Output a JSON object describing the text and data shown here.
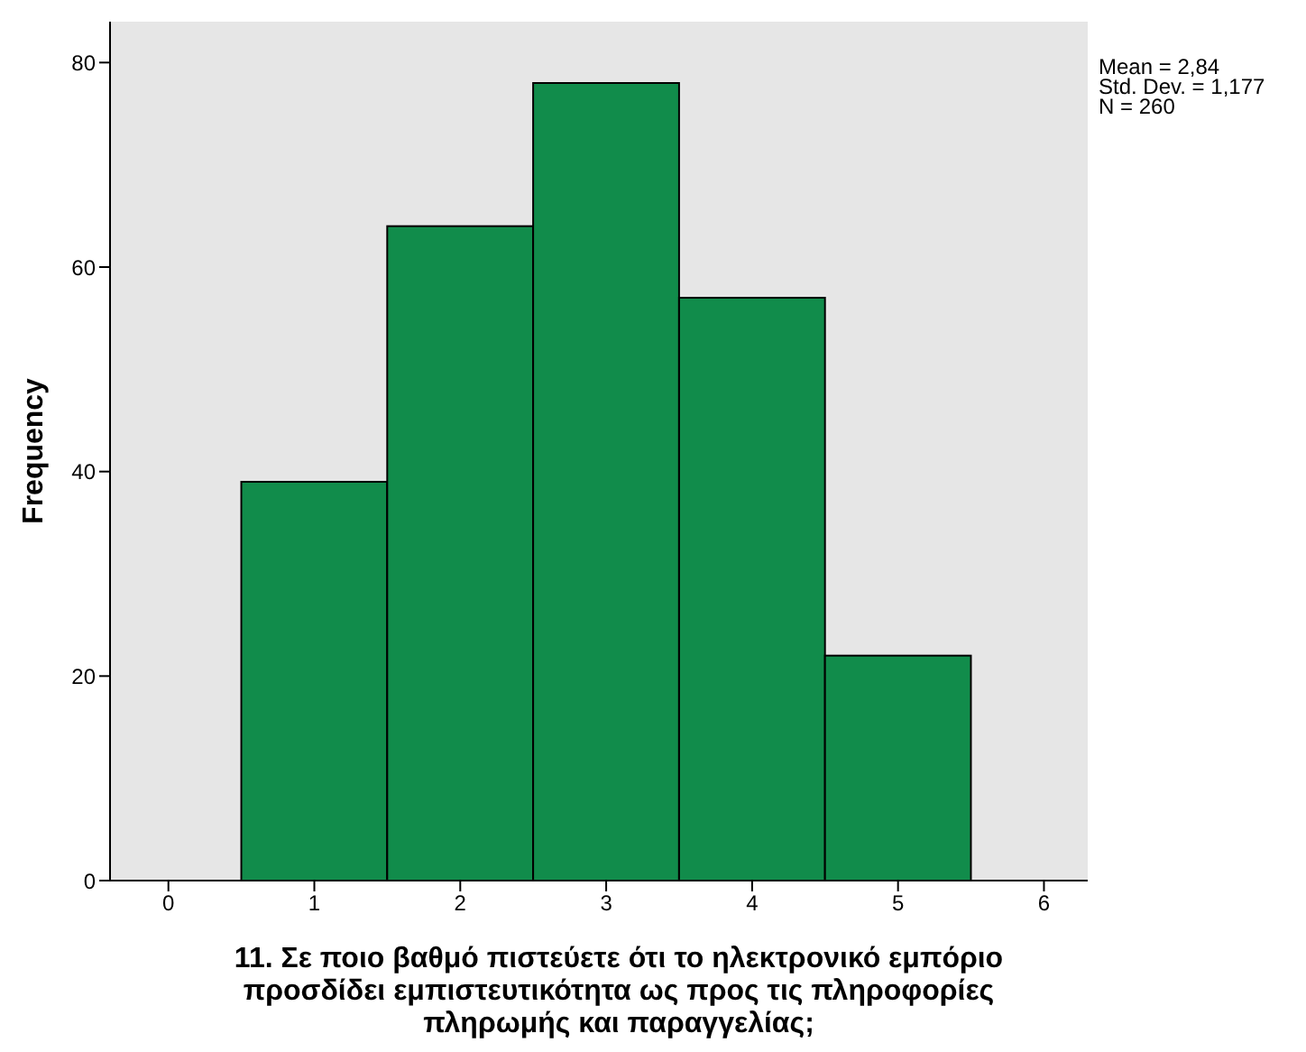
{
  "chart_data": {
    "type": "histogram",
    "xlabel": "11.  Σε ποιο βαθμό πιστεύετε ότι το ηλεκτρονικό εμπόριο προσδίδει εμπιστευτικότητα ως προς τις πληροφορίες πληρωμής και παραγγελίας;",
    "ylabel": "Frequency",
    "bins": [
      0.5,
      1.5,
      2.5,
      3.5,
      4.5,
      5.5
    ],
    "values": [
      39,
      64,
      78,
      57,
      22
    ],
    "color": "#118c4b",
    "xlim": [
      -0.4,
      6.3
    ],
    "xticks": [
      0,
      1,
      2,
      3,
      4,
      5,
      6
    ],
    "ylim": [
      0,
      84
    ],
    "yticks": [
      0,
      20,
      40,
      60,
      80
    ],
    "annotations": [
      "Mean = 2,84",
      "Std. Dev. = 1,177",
      "N = 260"
    ]
  }
}
